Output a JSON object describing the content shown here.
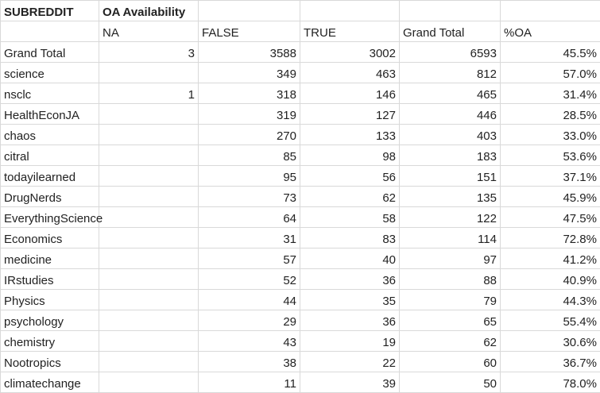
{
  "header": {
    "row_label": "SUBREDDIT",
    "col_group_label": "OA Availability",
    "columns": [
      "NA",
      "FALSE",
      "TRUE",
      "Grand Total",
      "%OA"
    ]
  },
  "rows": [
    {
      "name": "Grand Total",
      "na": "3",
      "false": "3588",
      "true": "3002",
      "total": "6593",
      "pct": "45.5%"
    },
    {
      "name": "science",
      "na": "",
      "false": "349",
      "true": "463",
      "total": "812",
      "pct": "57.0%"
    },
    {
      "name": "nsclc",
      "na": "1",
      "false": "318",
      "true": "146",
      "total": "465",
      "pct": "31.4%"
    },
    {
      "name": "HealthEconJA",
      "na": "",
      "false": "319",
      "true": "127",
      "total": "446",
      "pct": "28.5%"
    },
    {
      "name": "chaos",
      "na": "",
      "false": "270",
      "true": "133",
      "total": "403",
      "pct": "33.0%"
    },
    {
      "name": "citral",
      "na": "",
      "false": "85",
      "true": "98",
      "total": "183",
      "pct": "53.6%"
    },
    {
      "name": "todayilearned",
      "na": "",
      "false": "95",
      "true": "56",
      "total": "151",
      "pct": "37.1%"
    },
    {
      "name": "DrugNerds",
      "na": "",
      "false": "73",
      "true": "62",
      "total": "135",
      "pct": "45.9%"
    },
    {
      "name": "EverythingScience",
      "na": "",
      "false": "64",
      "true": "58",
      "total": "122",
      "pct": "47.5%"
    },
    {
      "name": "Economics",
      "na": "",
      "false": "31",
      "true": "83",
      "total": "114",
      "pct": "72.8%"
    },
    {
      "name": "medicine",
      "na": "",
      "false": "57",
      "true": "40",
      "total": "97",
      "pct": "41.2%"
    },
    {
      "name": "IRstudies",
      "na": "",
      "false": "52",
      "true": "36",
      "total": "88",
      "pct": "40.9%"
    },
    {
      "name": "Physics",
      "na": "",
      "false": "44",
      "true": "35",
      "total": "79",
      "pct": "44.3%"
    },
    {
      "name": "psychology",
      "na": "",
      "false": "29",
      "true": "36",
      "total": "65",
      "pct": "55.4%"
    },
    {
      "name": "chemistry",
      "na": "",
      "false": "43",
      "true": "19",
      "total": "62",
      "pct": "30.6%"
    },
    {
      "name": "Nootropics",
      "na": "",
      "false": "38",
      "true": "22",
      "total": "60",
      "pct": "36.7%"
    },
    {
      "name": "climatechange",
      "na": "",
      "false": "11",
      "true": "39",
      "total": "50",
      "pct": "78.0%"
    }
  ]
}
